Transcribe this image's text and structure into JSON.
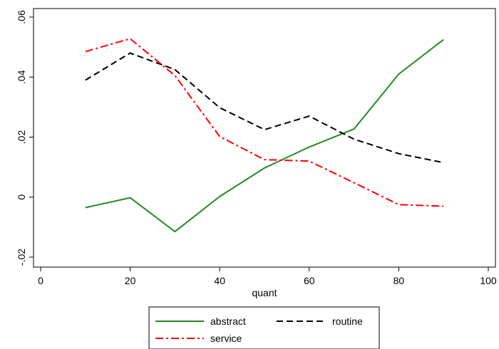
{
  "chart_data": {
    "type": "line",
    "xlabel": "quant",
    "ylabel": "",
    "xlim": [
      0,
      100
    ],
    "ylim": [
      -0.022,
      0.062
    ],
    "x_ticks": [
      0,
      20,
      40,
      60,
      80,
      100
    ],
    "x_tick_labels": [
      "0",
      "20",
      "40",
      "60",
      "80",
      "100"
    ],
    "y_ticks": [
      -0.02,
      0,
      0.02,
      0.04,
      0.06
    ],
    "y_tick_labels": [
      "-.02",
      "0",
      ".02",
      ".04",
      ".06"
    ],
    "grid": false,
    "legend_position": "bottom",
    "x": [
      10,
      20,
      30,
      40,
      50,
      60,
      70,
      80,
      90
    ],
    "series": [
      {
        "name": "abstract",
        "color": "#228B22",
        "dash": "solid",
        "values": [
          -0.0035,
          -0.0002,
          -0.0115,
          0.0002,
          0.0097,
          0.0167,
          0.0227,
          0.041,
          0.0525
        ]
      },
      {
        "name": "routine",
        "color": "#000000",
        "dash": "dash",
        "values": [
          0.039,
          0.048,
          0.0425,
          0.0298,
          0.0225,
          0.027,
          0.0193,
          0.0145,
          0.0115
        ]
      },
      {
        "name": "service",
        "color": "#FF0000",
        "dash": "dashdot",
        "values": [
          0.0485,
          0.0528,
          0.0405,
          0.0202,
          0.0125,
          0.012,
          0.0048,
          -0.0025,
          -0.003
        ]
      }
    ]
  }
}
